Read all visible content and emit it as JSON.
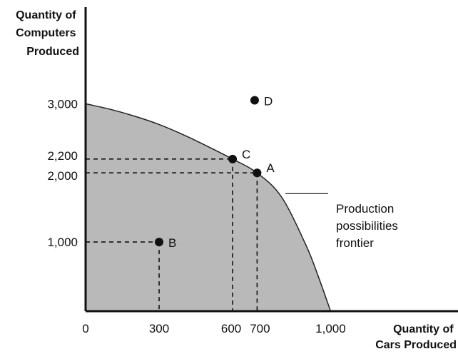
{
  "chart_data": {
    "type": "area",
    "title": "",
    "ylabel_lines": [
      "Quantity of",
      "Computers",
      "Produced"
    ],
    "xlabel_lines": [
      "Quantity of",
      "Cars Produced"
    ],
    "xlim": [
      0,
      1520
    ],
    "ylim": [
      0,
      4500
    ],
    "grid": false,
    "legend": "none",
    "x_ticks": [
      {
        "value": 0,
        "label": "0"
      },
      {
        "value": 300,
        "label": "300"
      },
      {
        "value": 600,
        "label": "600"
      },
      {
        "value": 700,
        "label": "700"
      },
      {
        "value": 1000,
        "label": "1,000"
      }
    ],
    "y_ticks": [
      {
        "value": 3000,
        "label": "3,000"
      },
      {
        "value": 2200,
        "label": "2,200"
      },
      {
        "value": 2000,
        "label": "2,000"
      },
      {
        "value": 1000,
        "label": "1,000"
      }
    ],
    "frontier": {
      "x": [
        0,
        100,
        200,
        300,
        400,
        500,
        600,
        700,
        800,
        900,
        950,
        1000
      ],
      "y": [
        3000,
        2920,
        2820,
        2700,
        2550,
        2380,
        2200,
        2000,
        1650,
        950,
        500,
        0
      ],
      "fill_color": "#b9b9b9",
      "line_color": "#222222"
    },
    "points": [
      {
        "label": "A",
        "x": 700,
        "y": 2000
      },
      {
        "label": "B",
        "x": 300,
        "y": 1000
      },
      {
        "label": "C",
        "x": 600,
        "y": 2200
      },
      {
        "label": "D",
        "x": 690,
        "y": 3050
      }
    ],
    "guide_lines": [
      {
        "x": 600,
        "y": 2200
      },
      {
        "x": 700,
        "y": 2000
      },
      {
        "x": 300,
        "y": 1000
      }
    ],
    "annotation": {
      "lines": [
        "Production",
        "possibilities",
        "frontier"
      ],
      "target_x": 820,
      "target_y": 1700
    }
  }
}
